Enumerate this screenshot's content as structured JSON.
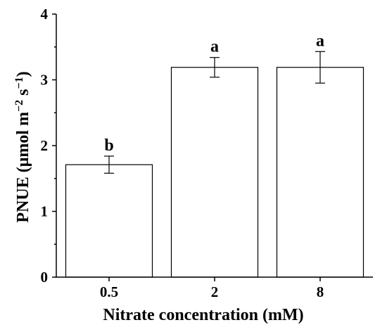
{
  "chart_data": {
    "type": "bar",
    "categories": [
      "0.5",
      "2",
      "8"
    ],
    "values": [
      1.71,
      3.19,
      3.19
    ],
    "errors": [
      0.13,
      0.15,
      0.24
    ],
    "significance": [
      "b",
      "a",
      "a"
    ],
    "xlabel": "Nitrate concentration (mM)",
    "ylabel": {
      "main": "PNUE (μmol m",
      "exp1": "−2",
      "mid": " s",
      "exp2": "−1",
      "close": ")"
    },
    "ylim": [
      0,
      4
    ],
    "yticks": [
      "0",
      "1",
      "2",
      "3",
      "4"
    ],
    "grid": false,
    "bar_fill": "#ffffff",
    "bar_stroke": "#000000"
  }
}
